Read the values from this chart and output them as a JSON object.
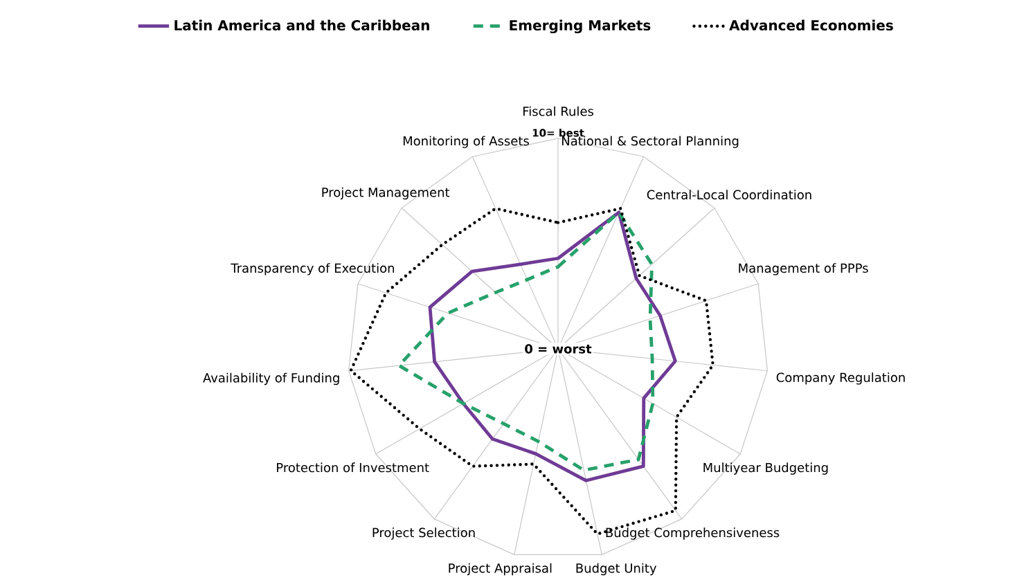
{
  "chart_data": {
    "type": "radar",
    "categories": [
      "Fiscal Rules",
      "National & Sectoral Planning",
      "Central-Local Coordination",
      "Management of PPPs",
      "Company Regulation",
      "Multiyear Budgeting",
      "Budget Comprehensiveness",
      "Budget Unity",
      "Project Appraisal",
      "Project Selection",
      "Protection of Investment",
      "Availability of Funding",
      "Transparency of Execution",
      "Project Management",
      "Monitoring of Assets"
    ],
    "series": [
      {
        "name": "Latin America and the Caribbean",
        "color": "#6f3b96",
        "line_style": "solid",
        "values": [
          4.3,
          7.1,
          5.0,
          5.1,
          5.6,
          4.7,
          6.9,
          6.4,
          5.1,
          5.3,
          5.2,
          5.9,
          6.4,
          5.5,
          4.4
        ]
      },
      {
        "name": "Emerging Markets",
        "color": "#27a16b",
        "line_style": "dashed",
        "values": [
          3.9,
          7.1,
          6.0,
          4.6,
          4.5,
          5.2,
          6.5,
          5.9,
          4.5,
          4.4,
          5.2,
          7.6,
          5.5,
          4.0,
          3.6
        ]
      },
      {
        "name": "Advanced Economies",
        "color": "#000000",
        "line_style": "dotted",
        "values": [
          6.0,
          7.3,
          5.2,
          7.4,
          7.4,
          6.5,
          9.5,
          9.0,
          5.6,
          6.9,
          7.6,
          9.9,
          8.6,
          7.4,
          7.3
        ]
      }
    ],
    "ylim": [
      0,
      10
    ],
    "yticks": [
      {
        "value": 0,
        "label": "0 = worst"
      },
      {
        "value": 10,
        "label": "10= best"
      }
    ],
    "grid": true,
    "legend": "top"
  }
}
